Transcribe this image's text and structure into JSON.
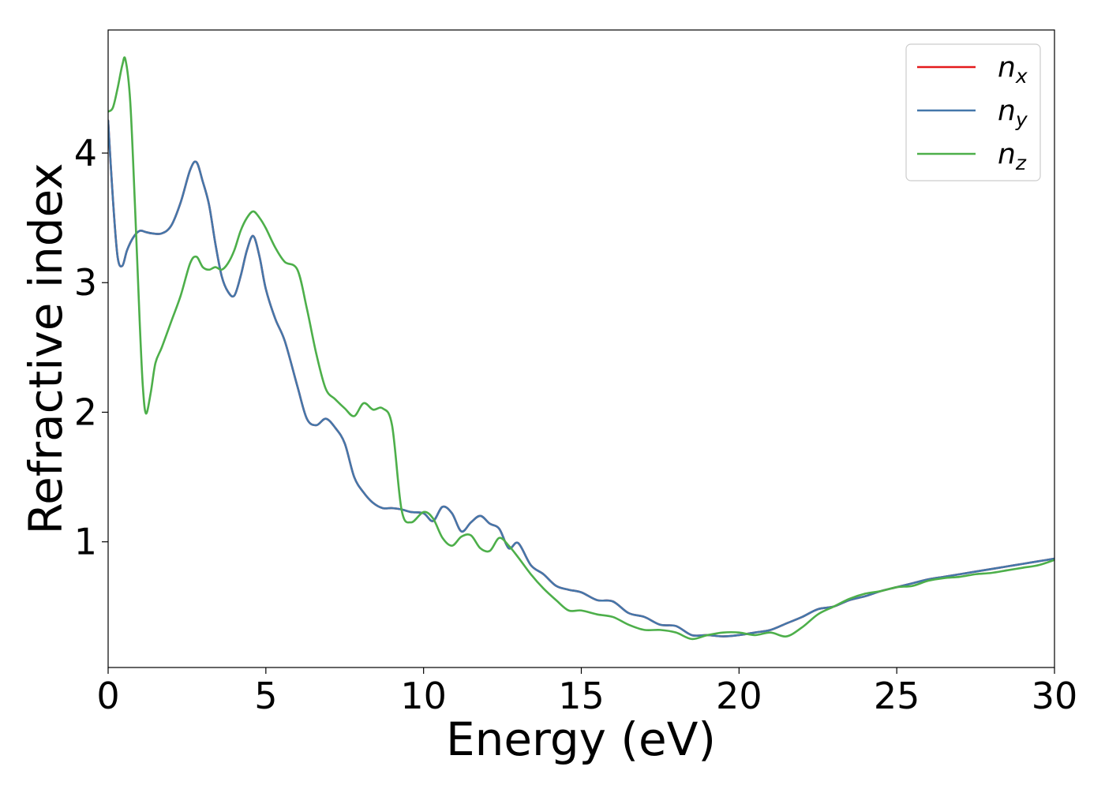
{
  "chart_data": {
    "type": "line",
    "xlabel": "Energy (eV)",
    "ylabel": "Refractive index",
    "xlim": [
      0,
      30
    ],
    "ylim": [
      0.03,
      4.95
    ],
    "xticks": [
      0,
      5,
      10,
      15,
      20,
      25,
      30
    ],
    "xtick_labels": [
      "0",
      "5",
      "10",
      "15",
      "20",
      "25",
      "30"
    ],
    "yticks": [
      1,
      2,
      3,
      4
    ],
    "ytick_labels": [
      "1",
      "2",
      "3",
      "4"
    ],
    "grid": false,
    "legend_position": "top-right",
    "series": [
      {
        "name": "n",
        "subscript": "x",
        "color": "#e41a1c",
        "x": [
          0,
          0.15,
          0.3,
          0.45,
          0.6,
          0.8,
          1.0,
          1.2,
          1.4,
          1.7,
          2.0,
          2.3,
          2.6,
          2.8,
          3.0,
          3.2,
          3.4,
          3.6,
          3.8,
          4.0,
          4.2,
          4.4,
          4.6,
          4.8,
          5.0,
          5.3,
          5.6,
          6.0,
          6.3,
          6.6,
          6.9,
          7.2,
          7.5,
          7.8,
          8.1,
          8.4,
          8.7,
          9.0,
          9.3,
          9.6,
          10.0,
          10.3,
          10.6,
          10.9,
          11.2,
          11.5,
          11.8,
          12.1,
          12.4,
          12.7,
          13.0,
          13.4,
          13.8,
          14.2,
          14.6,
          15.0,
          15.5,
          16.0,
          16.5,
          17.0,
          17.5,
          18.0,
          18.5,
          19.0,
          19.5,
          20.0,
          20.5,
          21.0,
          21.5,
          22.0,
          22.5,
          23.0,
          23.5,
          24.0,
          24.5,
          25.0,
          25.5,
          26.0,
          26.5,
          27.0,
          27.5,
          28.0,
          28.5,
          29.0,
          29.5,
          30.0
        ],
        "values": [
          4.25,
          3.65,
          3.2,
          3.13,
          3.25,
          3.35,
          3.4,
          3.39,
          3.38,
          3.38,
          3.44,
          3.62,
          3.87,
          3.93,
          3.78,
          3.6,
          3.3,
          3.05,
          2.93,
          2.9,
          3.05,
          3.25,
          3.36,
          3.2,
          2.95,
          2.72,
          2.55,
          2.2,
          1.95,
          1.9,
          1.95,
          1.88,
          1.76,
          1.5,
          1.38,
          1.3,
          1.26,
          1.26,
          1.25,
          1.23,
          1.22,
          1.16,
          1.27,
          1.22,
          1.08,
          1.15,
          1.2,
          1.14,
          1.1,
          0.95,
          0.99,
          0.82,
          0.75,
          0.66,
          0.63,
          0.61,
          0.55,
          0.54,
          0.45,
          0.42,
          0.36,
          0.35,
          0.28,
          0.28,
          0.27,
          0.28,
          0.3,
          0.32,
          0.37,
          0.42,
          0.48,
          0.5,
          0.55,
          0.58,
          0.62,
          0.65,
          0.68,
          0.71,
          0.73,
          0.75,
          0.77,
          0.79,
          0.81,
          0.83,
          0.85,
          0.87
        ]
      },
      {
        "name": "n",
        "subscript": "y",
        "color": "#4477aa",
        "x": [
          0,
          0.15,
          0.3,
          0.45,
          0.6,
          0.8,
          1.0,
          1.2,
          1.4,
          1.7,
          2.0,
          2.3,
          2.6,
          2.8,
          3.0,
          3.2,
          3.4,
          3.6,
          3.8,
          4.0,
          4.2,
          4.4,
          4.6,
          4.8,
          5.0,
          5.3,
          5.6,
          6.0,
          6.3,
          6.6,
          6.9,
          7.2,
          7.5,
          7.8,
          8.1,
          8.4,
          8.7,
          9.0,
          9.3,
          9.6,
          10.0,
          10.3,
          10.6,
          10.9,
          11.2,
          11.5,
          11.8,
          12.1,
          12.4,
          12.7,
          13.0,
          13.4,
          13.8,
          14.2,
          14.6,
          15.0,
          15.5,
          16.0,
          16.5,
          17.0,
          17.5,
          18.0,
          18.5,
          19.0,
          19.5,
          20.0,
          20.5,
          21.0,
          21.5,
          22.0,
          22.5,
          23.0,
          23.5,
          24.0,
          24.5,
          25.0,
          25.5,
          26.0,
          26.5,
          27.0,
          27.5,
          28.0,
          28.5,
          29.0,
          29.5,
          30.0
        ],
        "values": [
          4.25,
          3.65,
          3.2,
          3.13,
          3.25,
          3.35,
          3.4,
          3.39,
          3.38,
          3.38,
          3.44,
          3.62,
          3.87,
          3.93,
          3.78,
          3.6,
          3.3,
          3.05,
          2.93,
          2.9,
          3.05,
          3.25,
          3.36,
          3.2,
          2.95,
          2.72,
          2.55,
          2.2,
          1.95,
          1.9,
          1.95,
          1.88,
          1.76,
          1.5,
          1.38,
          1.3,
          1.26,
          1.26,
          1.25,
          1.23,
          1.22,
          1.16,
          1.27,
          1.22,
          1.08,
          1.15,
          1.2,
          1.14,
          1.1,
          0.95,
          0.99,
          0.82,
          0.75,
          0.66,
          0.63,
          0.61,
          0.55,
          0.54,
          0.45,
          0.42,
          0.36,
          0.35,
          0.28,
          0.28,
          0.27,
          0.28,
          0.3,
          0.32,
          0.37,
          0.42,
          0.48,
          0.5,
          0.55,
          0.58,
          0.62,
          0.65,
          0.68,
          0.71,
          0.73,
          0.75,
          0.77,
          0.79,
          0.81,
          0.83,
          0.85,
          0.87
        ]
      },
      {
        "name": "n",
        "subscript": "z",
        "color": "#4daf4a",
        "x": [
          0,
          0.15,
          0.3,
          0.45,
          0.55,
          0.7,
          0.85,
          1.0,
          1.1,
          1.2,
          1.35,
          1.5,
          1.7,
          2.0,
          2.3,
          2.6,
          2.8,
          3.0,
          3.2,
          3.4,
          3.6,
          3.8,
          4.0,
          4.2,
          4.4,
          4.6,
          4.8,
          5.0,
          5.3,
          5.6,
          6.0,
          6.3,
          6.6,
          6.9,
          7.2,
          7.5,
          7.8,
          8.1,
          8.4,
          8.7,
          9.0,
          9.3,
          9.6,
          10.0,
          10.3,
          10.6,
          10.9,
          11.2,
          11.5,
          11.8,
          12.1,
          12.4,
          12.7,
          13.0,
          13.4,
          13.8,
          14.2,
          14.6,
          15.0,
          15.5,
          16.0,
          16.5,
          17.0,
          17.5,
          18.0,
          18.5,
          19.0,
          19.5,
          20.0,
          20.5,
          21.0,
          21.5,
          22.0,
          22.5,
          23.0,
          23.5,
          24.0,
          24.5,
          25.0,
          25.5,
          26.0,
          26.5,
          27.0,
          27.5,
          28.0,
          28.5,
          29.0,
          29.5,
          30.0
        ],
        "values": [
          4.32,
          4.35,
          4.5,
          4.68,
          4.72,
          4.4,
          3.6,
          2.7,
          2.2,
          1.99,
          2.15,
          2.38,
          2.5,
          2.7,
          2.9,
          3.15,
          3.2,
          3.12,
          3.1,
          3.12,
          3.1,
          3.15,
          3.25,
          3.4,
          3.5,
          3.55,
          3.5,
          3.42,
          3.27,
          3.16,
          3.1,
          2.8,
          2.45,
          2.18,
          2.1,
          2.03,
          1.97,
          2.07,
          2.02,
          2.03,
          1.9,
          1.25,
          1.15,
          1.23,
          1.18,
          1.03,
          0.97,
          1.04,
          1.05,
          0.95,
          0.93,
          1.03,
          0.97,
          0.88,
          0.75,
          0.64,
          0.55,
          0.47,
          0.47,
          0.44,
          0.42,
          0.36,
          0.32,
          0.32,
          0.3,
          0.25,
          0.28,
          0.3,
          0.3,
          0.28,
          0.3,
          0.27,
          0.34,
          0.44,
          0.5,
          0.56,
          0.6,
          0.62,
          0.65,
          0.66,
          0.7,
          0.72,
          0.73,
          0.75,
          0.76,
          0.78,
          0.8,
          0.82,
          0.86
        ]
      }
    ]
  }
}
